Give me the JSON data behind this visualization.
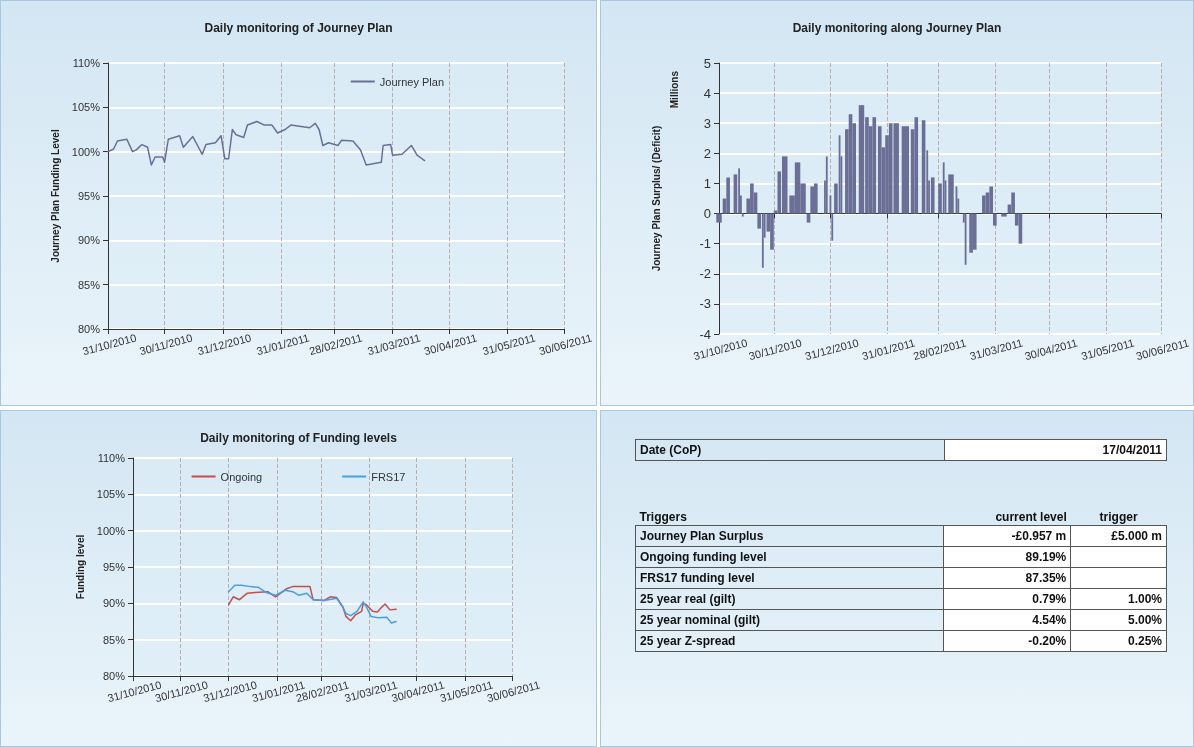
{
  "chart_data": [
    {
      "type": "line",
      "title": "Daily monitoring of Journey Plan",
      "ylabel": "Journey Plan Funding Level",
      "legend": "top right",
      "grid": true,
      "marker": "none",
      "line_style": "solid",
      "xlim": [
        "2010-10-31",
        "2011-06-30"
      ],
      "xticks": [
        {
          "value": "2010-10-31",
          "label": "31/10/2010"
        },
        {
          "value": "2010-11-30",
          "label": "30/11/2010"
        },
        {
          "value": "2010-12-31",
          "label": "31/12/2010"
        },
        {
          "value": "2011-01-31",
          "label": "31/01/2011"
        },
        {
          "value": "2011-02-28",
          "label": "28/02/2011"
        },
        {
          "value": "2011-03-31",
          "label": "31/03/2011"
        },
        {
          "value": "2011-04-30",
          "label": "30/04/2011"
        },
        {
          "value": "2011-05-31",
          "label": "31/05/2011"
        },
        {
          "value": "2011-06-30",
          "label": "30/06/2011"
        }
      ],
      "ylim": [
        80,
        110
      ],
      "yticks": [
        {
          "value": 80,
          "label": "80%"
        },
        {
          "value": 85,
          "label": "85%"
        },
        {
          "value": 90,
          "label": "90%"
        },
        {
          "value": 95,
          "label": "95%"
        },
        {
          "value": 100,
          "label": "100%"
        },
        {
          "value": 105,
          "label": "105%"
        },
        {
          "value": 110,
          "label": "110%"
        }
      ],
      "series": [
        {
          "name": "Journey Plan",
          "color": "#6b6f96",
          "x": [
            "2010-10-31",
            "2010-11-03",
            "2010-11-05",
            "2010-11-10",
            "2010-11-13",
            "2010-11-15",
            "2010-11-18",
            "2010-11-21",
            "2010-11-23",
            "2010-11-25",
            "2010-11-29",
            "2010-11-30",
            "2010-12-02",
            "2010-12-08",
            "2010-12-10",
            "2010-12-15",
            "2010-12-18",
            "2010-12-20",
            "2010-12-22",
            "2010-12-27",
            "2010-12-30",
            "2011-01-01",
            "2011-01-03",
            "2011-01-05",
            "2011-01-07",
            "2011-01-11",
            "2011-01-13",
            "2011-01-18",
            "2011-01-22",
            "2011-01-26",
            "2011-01-29",
            "2011-02-02",
            "2011-02-05",
            "2011-02-15",
            "2011-02-18",
            "2011-02-20",
            "2011-02-22",
            "2011-02-25",
            "2011-03-02",
            "2011-03-04",
            "2011-03-10",
            "2011-03-14",
            "2011-03-17",
            "2011-03-25",
            "2011-03-26",
            "2011-03-30",
            "2011-03-31",
            "2011-04-05",
            "2011-04-10",
            "2011-04-13",
            "2011-04-17"
          ],
          "values": [
            100.0,
            100.3,
            101.2,
            101.4,
            100.0,
            100.2,
            100.8,
            100.5,
            98.5,
            99.4,
            99.4,
            98.8,
            101.4,
            101.8,
            100.5,
            101.7,
            100.5,
            99.7,
            100.8,
            101.0,
            101.8,
            99.2,
            99.2,
            102.5,
            101.9,
            101.6,
            103.0,
            103.4,
            103.0,
            103.0,
            102.1,
            102.5,
            103.0,
            102.7,
            103.2,
            102.5,
            100.7,
            101.0,
            100.7,
            101.3,
            101.2,
            100.2,
            98.5,
            98.8,
            100.7,
            100.8,
            99.6,
            99.7,
            100.7,
            99.6,
            99.0
          ]
        }
      ]
    },
    {
      "type": "bar",
      "title": "Daily monitoring along Journey Plan",
      "ylabel": "Journey Plan Surplus/ (Deficit)",
      "annotations": [
        "Millions"
      ],
      "grid": true,
      "xlim": [
        "2010-10-31",
        "2011-06-30"
      ],
      "xticks": [
        {
          "value": "2010-10-31",
          "label": "31/10/2010"
        },
        {
          "value": "2010-11-30",
          "label": "30/11/2010"
        },
        {
          "value": "2010-12-31",
          "label": "31/12/2010"
        },
        {
          "value": "2011-01-31",
          "label": "31/01/2011"
        },
        {
          "value": "2011-02-28",
          "label": "28/02/2011"
        },
        {
          "value": "2011-03-31",
          "label": "31/03/2011"
        },
        {
          "value": "2011-04-30",
          "label": "30/04/2011"
        },
        {
          "value": "2011-05-31",
          "label": "31/05/2011"
        },
        {
          "value": "2011-06-30",
          "label": "30/06/2011"
        }
      ],
      "ylim": [
        -4,
        5
      ],
      "yticks": [
        -4,
        -3,
        -2,
        -1,
        0,
        1,
        2,
        3,
        4,
        5
      ],
      "series": [
        {
          "color": "#6b6f96",
          "x": [
            "2010-10-31",
            "2010-11-03",
            "2010-11-05",
            "2010-11-09",
            "2010-11-11",
            "2010-11-12",
            "2010-11-13",
            "2010-11-16",
            "2010-11-18",
            "2010-11-20",
            "2010-11-22",
            "2010-11-24",
            "2010-11-25",
            "2010-11-27",
            "2010-11-29",
            "2010-12-01",
            "2010-12-03",
            "2010-12-06",
            "2010-12-10",
            "2010-12-13",
            "2010-12-16",
            "2010-12-19",
            "2010-12-21",
            "2010-12-23",
            "2010-12-28",
            "2010-12-29",
            "2010-12-31",
            "2011-01-01",
            "2011-01-03",
            "2011-01-05",
            "2011-01-06",
            "2011-01-09",
            "2011-01-11",
            "2011-01-13",
            "2011-01-17",
            "2011-01-20",
            "2011-01-22",
            "2011-01-24",
            "2011-01-27",
            "2011-01-29",
            "2011-01-31",
            "2011-02-02",
            "2011-02-05",
            "2011-02-10",
            "2011-02-14",
            "2011-02-16",
            "2011-02-20",
            "2011-02-22",
            "2011-02-23",
            "2011-02-25",
            "2011-03-01",
            "2011-03-03",
            "2011-03-04",
            "2011-03-07",
            "2011-03-10",
            "2011-03-11",
            "2011-03-14",
            "2011-03-15",
            "2011-03-18",
            "2011-03-20",
            "2011-03-25",
            "2011-03-27",
            "2011-03-29",
            "2011-03-31",
            "2011-04-05",
            "2011-04-08",
            "2011-04-10",
            "2011-04-12",
            "2011-04-14"
          ],
          "values": [
            -0.3,
            0.5,
            1.2,
            1.3,
            1.5,
            0.6,
            -0.1,
            0.5,
            1.0,
            0.7,
            -0.5,
            -1.8,
            -0.8,
            -0.6,
            -1.2,
            0.1,
            1.4,
            1.9,
            0.6,
            1.7,
            1.0,
            -0.3,
            0.9,
            1.0,
            1.1,
            1.9,
            0.6,
            -0.9,
            1.0,
            2.6,
            1.9,
            2.8,
            3.3,
            3.0,
            3.6,
            3.2,
            2.9,
            3.2,
            2.9,
            2.2,
            2.6,
            3.0,
            3.0,
            2.9,
            2.8,
            3.2,
            3.1,
            2.1,
            1.1,
            1.2,
            1.0,
            1.7,
            1.1,
            1.3,
            0.9,
            0.5,
            -0.3,
            -1.7,
            -1.3,
            -1.2,
            0.6,
            0.7,
            0.9,
            -0.4,
            -0.1,
            0.3,
            0.7,
            -0.4,
            -1.0
          ]
        }
      ]
    },
    {
      "type": "line",
      "title": "Daily monitoring of Funding levels",
      "ylabel": "Funding level",
      "legend": "top",
      "grid": true,
      "marker": "none",
      "line_style": "solid",
      "xlim": [
        "2010-10-31",
        "2011-06-30"
      ],
      "xticks": [
        {
          "value": "2010-10-31",
          "label": "31/10/2010"
        },
        {
          "value": "2010-11-30",
          "label": "30/11/2010"
        },
        {
          "value": "2010-12-31",
          "label": "31/12/2010"
        },
        {
          "value": "2011-01-31",
          "label": "31/01/2011"
        },
        {
          "value": "2011-02-28",
          "label": "28/02/2011"
        },
        {
          "value": "2011-03-31",
          "label": "31/03/2011"
        },
        {
          "value": "2011-04-30",
          "label": "30/04/2011"
        },
        {
          "value": "2011-05-31",
          "label": "31/05/2011"
        },
        {
          "value": "2011-06-30",
          "label": "30/06/2011"
        }
      ],
      "ylim": [
        80,
        110
      ],
      "yticks": [
        {
          "value": 80,
          "label": "80%"
        },
        {
          "value": 85,
          "label": "85%"
        },
        {
          "value": 90,
          "label": "90%"
        },
        {
          "value": 95,
          "label": "95%"
        },
        {
          "value": 100,
          "label": "100%"
        },
        {
          "value": 105,
          "label": "105%"
        },
        {
          "value": 110,
          "label": "110%"
        }
      ],
      "series": [
        {
          "name": "Ongoing",
          "color": "#c0504d",
          "x": [
            "2010-12-31",
            "2011-01-03",
            "2011-01-07",
            "2011-01-12",
            "2011-01-17",
            "2011-01-25",
            "2011-01-30",
            "2011-02-03",
            "2011-02-06",
            "2011-02-10",
            "2011-02-16",
            "2011-02-21",
            "2011-02-23",
            "2011-03-02",
            "2011-03-06",
            "2011-03-10",
            "2011-03-14",
            "2011-03-16",
            "2011-03-19",
            "2011-03-22",
            "2011-03-26",
            "2011-03-27",
            "2011-03-29",
            "2011-04-02",
            "2011-04-05",
            "2011-04-07",
            "2011-04-10",
            "2011-04-13",
            "2011-04-17"
          ],
          "values": [
            89.8,
            90.9,
            90.5,
            91.4,
            91.5,
            91.6,
            90.9,
            91.5,
            92.0,
            92.3,
            92.3,
            92.3,
            90.5,
            90.4,
            90.9,
            90.8,
            89.5,
            88.2,
            87.6,
            88.4,
            88.9,
            90.0,
            89.8,
            88.9,
            88.8,
            89.3,
            89.9,
            89.1,
            89.2
          ]
        },
        {
          "name": "FRS17",
          "color": "#4a9ee0",
          "x": [
            "2010-12-31",
            "2011-01-04",
            "2011-01-08",
            "2011-01-14",
            "2011-01-19",
            "2011-01-24",
            "2011-01-30",
            "2011-02-05",
            "2011-02-10",
            "2011-02-14",
            "2011-02-19",
            "2011-02-23",
            "2011-03-02",
            "2011-03-10",
            "2011-03-14",
            "2011-03-16",
            "2011-03-19",
            "2011-03-23",
            "2011-03-27",
            "2011-03-29",
            "2011-04-01",
            "2011-04-06",
            "2011-04-11",
            "2011-04-14",
            "2011-04-17"
          ],
          "values": [
            91.6,
            92.5,
            92.5,
            92.3,
            92.2,
            91.5,
            91.1,
            91.8,
            91.6,
            91.1,
            91.4,
            90.5,
            90.4,
            90.7,
            89.5,
            88.6,
            88.3,
            88.9,
            90.2,
            89.5,
            88.2,
            88.0,
            88.1,
            87.3,
            87.5
          ]
        }
      ]
    },
    {
      "type": "other",
      "title": "Triggers",
      "annotations": [
        "Date (CoP)",
        "17/04/2011"
      ],
      "categories": [
        "Journey Plan Surplus",
        "Ongoing funding level",
        "FRS17 funding level",
        "25 year real (gilt)",
        "25 year nominal (gilt)",
        "25 year Z-spread"
      ],
      "series": [
        {
          "name": "current level",
          "values": [
            -0.957,
            89.19,
            87.35,
            0.79,
            4.54,
            -0.2
          ],
          "value_labels": [
            "-£0.957 m",
            "89.19%",
            "87.35%",
            "0.79%",
            "4.54%",
            "-0.20%"
          ]
        },
        {
          "name": "trigger",
          "values": [
            5.0,
            null,
            null,
            1.0,
            5.0,
            0.25
          ],
          "value_labels": [
            "£5.000 m",
            null,
            null,
            "1.00%",
            "5.00%",
            "0.25%"
          ]
        }
      ]
    }
  ]
}
